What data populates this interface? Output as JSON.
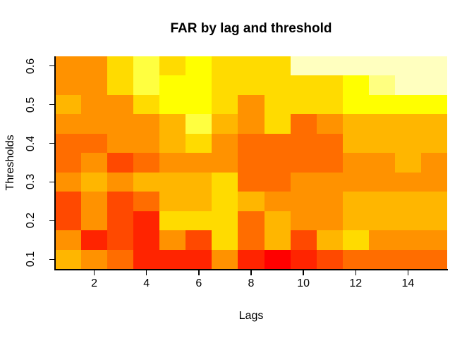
{
  "title": "FAR by lag and threshold",
  "axes": {
    "x": {
      "label": "Lags",
      "ticks": [
        2,
        4,
        6,
        8,
        10,
        12,
        14
      ],
      "range": [
        0.5,
        15.5
      ]
    },
    "y": {
      "label": "Thresholds",
      "ticks": [
        "0.1",
        "0.2",
        "0.3",
        "0.4",
        "0.5",
        "0.6"
      ],
      "range": [
        0.075,
        0.625
      ]
    }
  },
  "chart_data": {
    "type": "heatmap",
    "title": "FAR by lag and threshold",
    "xlabel": "Lags",
    "ylabel": "Thresholds",
    "x_values": [
      1,
      2,
      3,
      4,
      5,
      6,
      7,
      8,
      9,
      10,
      11,
      12,
      13,
      14,
      15
    ],
    "y_values_top_to_bottom": [
      0.6,
      0.55,
      0.5,
      0.45,
      0.4,
      0.35,
      0.3,
      0.25,
      0.2,
      0.15,
      0.1
    ],
    "palette_name": "R heat.colors(12)",
    "palette": [
      "#FF0000",
      "#FF2400",
      "#FF4900",
      "#FF6D00",
      "#FF9200",
      "#FFB600",
      "#FFDB00",
      "#FFFF00",
      "#FFFF40",
      "#FFFF80",
      "#FFFFBF",
      "#FFFFFF"
    ],
    "value_encoding": "Each cell stores a color-bin index 1-12 into the heat.colors(12) palette; bin 1 (red) = lowest FAR, bin 12 (white) = highest FAR. No numeric colorbar is shown in the figure.",
    "rows_top_to_bottom": [
      [
        5,
        5,
        7,
        9,
        7,
        8,
        7,
        7,
        7,
        11,
        11,
        11,
        11,
        11,
        11
      ],
      [
        5,
        5,
        7,
        9,
        8,
        8,
        7,
        7,
        7,
        7,
        7,
        8,
        10,
        11,
        11
      ],
      [
        6,
        5,
        5,
        7,
        8,
        8,
        7,
        5,
        7,
        7,
        7,
        8,
        8,
        8,
        8
      ],
      [
        5,
        5,
        5,
        5,
        6,
        9,
        6,
        5,
        7,
        4,
        5,
        6,
        6,
        6,
        6
      ],
      [
        4,
        4,
        5,
        5,
        6,
        7,
        5,
        4,
        4,
        4,
        4,
        6,
        6,
        6,
        6
      ],
      [
        4,
        5,
        3,
        4,
        5,
        5,
        5,
        4,
        4,
        4,
        4,
        5,
        5,
        6,
        5
      ],
      [
        5,
        6,
        5,
        6,
        6,
        6,
        7,
        4,
        4,
        5,
        5,
        5,
        5,
        5,
        5
      ],
      [
        3,
        5,
        3,
        4,
        6,
        6,
        7,
        6,
        5,
        5,
        5,
        6,
        6,
        6,
        6
      ],
      [
        3,
        5,
        3,
        2,
        7,
        7,
        7,
        4,
        6,
        5,
        5,
        6,
        6,
        6,
        6
      ],
      [
        5,
        2,
        3,
        2,
        5,
        3,
        7,
        4,
        6,
        3,
        6,
        7,
        5,
        5,
        5
      ],
      [
        6,
        5,
        4,
        2,
        2,
        2,
        5,
        2,
        1,
        2,
        3,
        4,
        4,
        4,
        4
      ]
    ]
  }
}
